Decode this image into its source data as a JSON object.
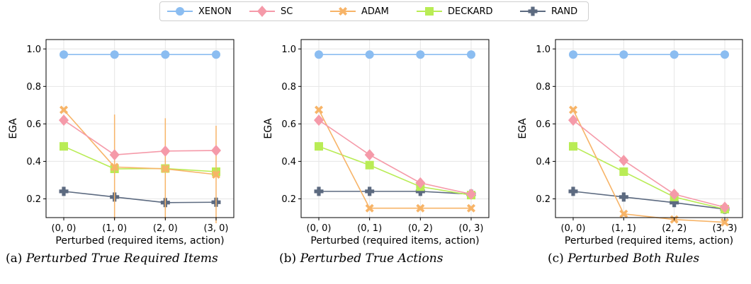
{
  "legend": [
    {
      "name": "XENON",
      "color": "#8bbdf1",
      "marker": "circle"
    },
    {
      "name": "SC",
      "color": "#f59aa9",
      "marker": "diamond"
    },
    {
      "name": "ADAM",
      "color": "#f7b468",
      "marker": "x"
    },
    {
      "name": "DECKARD",
      "color": "#b9ec55",
      "marker": "square"
    },
    {
      "name": "RAND",
      "color": "#5c6a80",
      "marker": "plus"
    }
  ],
  "captions": [
    {
      "label": "(a)",
      "title": "Perturbed True Required Items"
    },
    {
      "label": "(b)",
      "title": "Perturbed True Actions"
    },
    {
      "label": "(c)",
      "title": "Perturbed Both Rules"
    }
  ],
  "chart_data": [
    {
      "type": "line",
      "categories": [
        "(0, 0)",
        "(1, 0)",
        "(2, 0)",
        "(3, 0)"
      ],
      "xlabel": "Perturbed (required items, action)",
      "ylabel": "EGA",
      "ylim": [
        0.1,
        1.05
      ],
      "yticks": [
        0.2,
        0.4,
        0.6,
        0.8,
        1.0
      ],
      "grid": true,
      "series": [
        {
          "name": "XENON",
          "values": [
            0.97,
            0.97,
            0.97,
            0.97
          ]
        },
        {
          "name": "SC",
          "values": [
            0.62,
            0.435,
            0.455,
            0.458
          ]
        },
        {
          "name": "ADAM",
          "values": [
            0.675,
            0.37,
            0.36,
            0.33
          ],
          "error": [
            [
              0.675,
              0.675
            ],
            [
              0.09,
              0.65
            ],
            [
              0.09,
              0.63
            ],
            [
              0.07,
              0.59
            ]
          ]
        },
        {
          "name": "DECKARD",
          "values": [
            0.48,
            0.36,
            0.362,
            0.345
          ]
        },
        {
          "name": "RAND",
          "values": [
            0.24,
            0.21,
            0.18,
            0.182
          ]
        }
      ]
    },
    {
      "type": "line",
      "categories": [
        "(0, 0)",
        "(0, 1)",
        "(0, 2)",
        "(0, 3)"
      ],
      "xlabel": "Perturbed (required items, action)",
      "ylabel": "EGA",
      "ylim": [
        0.1,
        1.05
      ],
      "yticks": [
        0.2,
        0.4,
        0.6,
        0.8,
        1.0
      ],
      "grid": true,
      "series": [
        {
          "name": "XENON",
          "values": [
            0.97,
            0.97,
            0.97,
            0.97
          ]
        },
        {
          "name": "SC",
          "values": [
            0.62,
            0.435,
            0.285,
            0.225
          ]
        },
        {
          "name": "ADAM",
          "values": [
            0.675,
            0.15,
            0.15,
            0.15
          ]
        },
        {
          "name": "DECKARD",
          "values": [
            0.48,
            0.38,
            0.265,
            0.22
          ]
        },
        {
          "name": "RAND",
          "values": [
            0.24,
            0.24,
            0.24,
            0.225
          ]
        }
      ]
    },
    {
      "type": "line",
      "categories": [
        "(0, 0)",
        "(1, 1)",
        "(2, 2)",
        "(3, 3)"
      ],
      "xlabel": "Perturbed (required items, action)",
      "ylabel": "EGA",
      "ylim": [
        0.1,
        1.05
      ],
      "yticks": [
        0.2,
        0.4,
        0.6,
        0.8,
        1.0
      ],
      "grid": true,
      "series": [
        {
          "name": "XENON",
          "values": [
            0.97,
            0.97,
            0.97,
            0.97
          ]
        },
        {
          "name": "SC",
          "values": [
            0.62,
            0.405,
            0.225,
            0.155
          ]
        },
        {
          "name": "ADAM",
          "values": [
            0.675,
            0.12,
            0.09,
            0.075
          ]
        },
        {
          "name": "DECKARD",
          "values": [
            0.48,
            0.345,
            0.21,
            0.145
          ]
        },
        {
          "name": "RAND",
          "values": [
            0.24,
            0.21,
            0.18,
            0.145
          ]
        }
      ]
    }
  ]
}
